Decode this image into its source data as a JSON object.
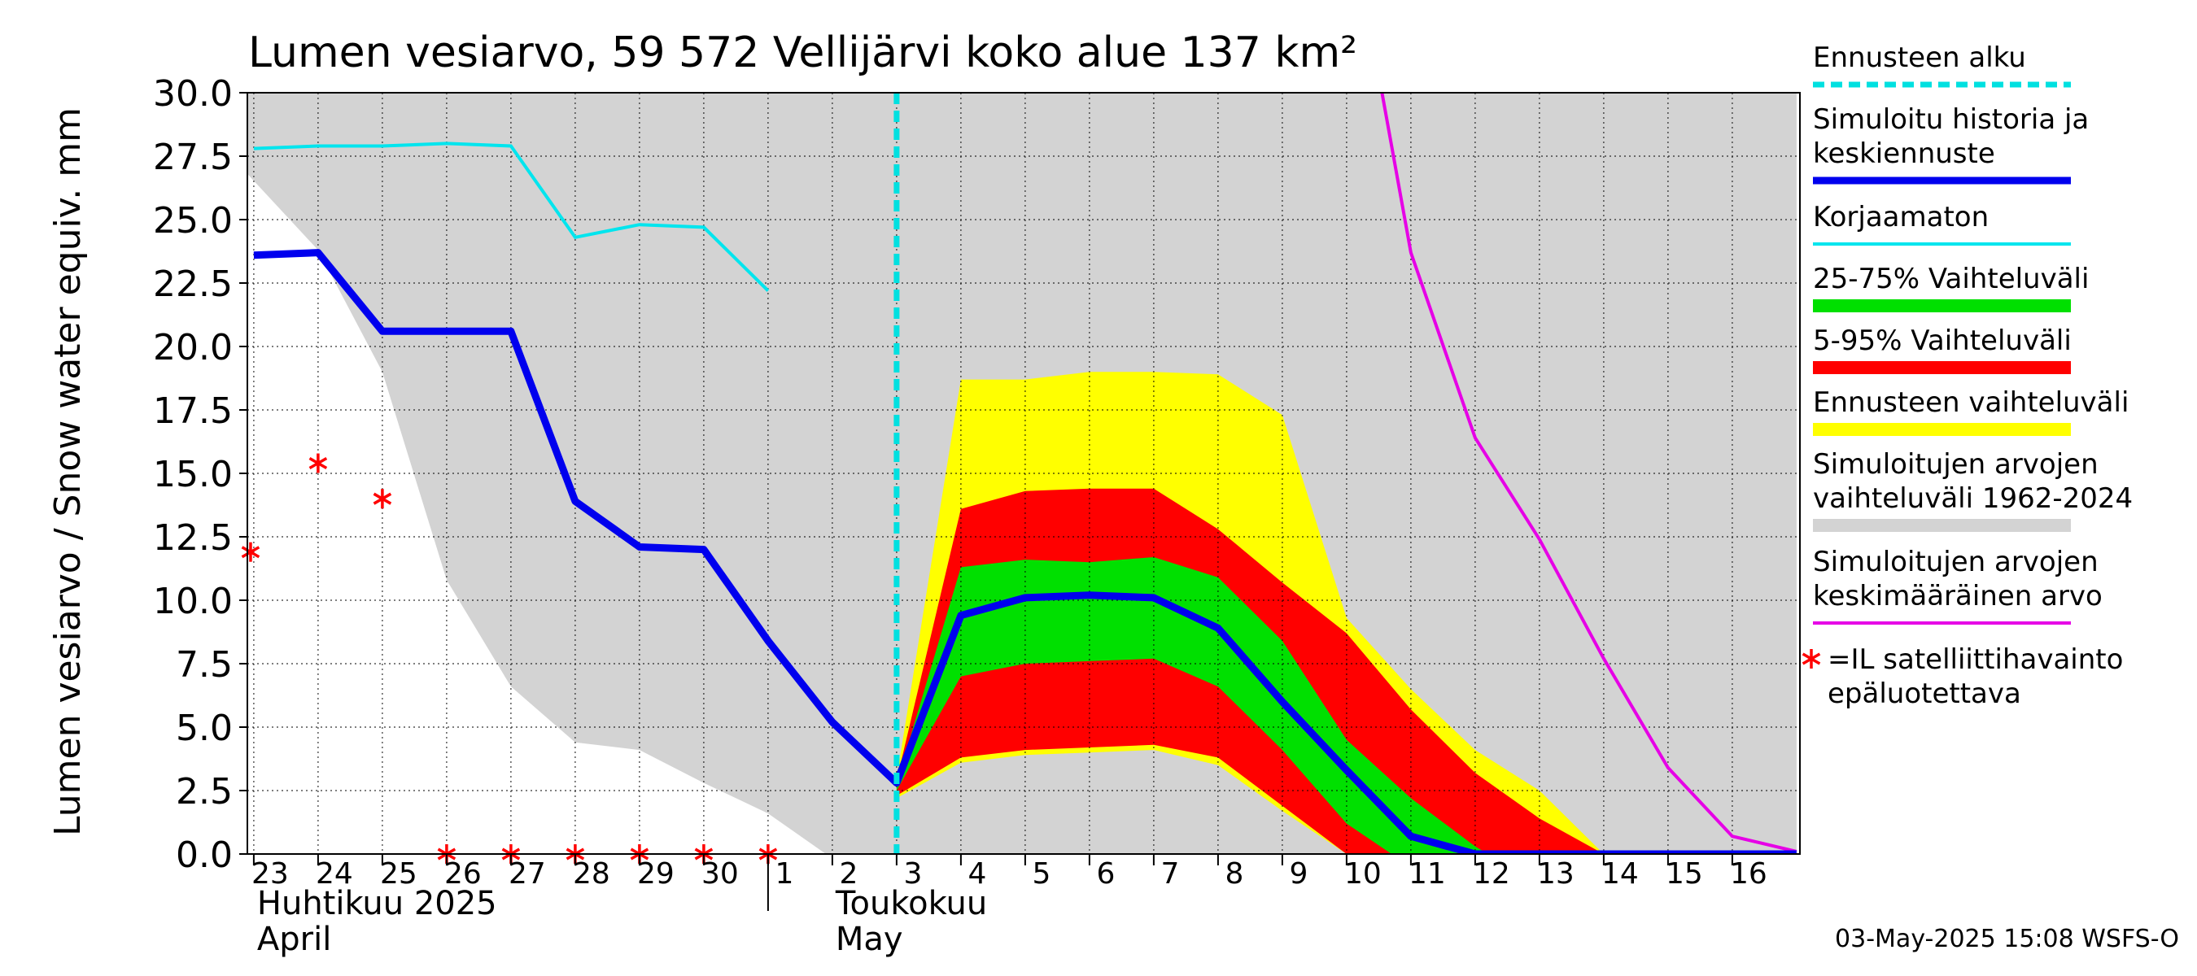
{
  "chart_data": {
    "type": "area",
    "title": "Lumen vesiarvo, 59 572 Vellijärvi koko alue 137 km²",
    "ylabel": "Lumen vesiarvo / Snow water equiv.    mm",
    "ylim": [
      0,
      30
    ],
    "yticks": [
      "0.0",
      "2.5",
      "5.0",
      "7.5",
      "10.0",
      "12.5",
      "15.0",
      "17.5",
      "20.0",
      "22.5",
      "25.0",
      "27.5",
      "30.0"
    ],
    "x_unit": "day",
    "xlim": [
      -0.1,
      24.0
    ],
    "day_labels": [
      {
        "x": 0,
        "label": "23"
      },
      {
        "x": 1,
        "label": "24"
      },
      {
        "x": 2,
        "label": "25"
      },
      {
        "x": 3,
        "label": "26"
      },
      {
        "x": 4,
        "label": "27"
      },
      {
        "x": 5,
        "label": "28"
      },
      {
        "x": 6,
        "label": "29"
      },
      {
        "x": 7,
        "label": "30"
      },
      {
        "x": 8,
        "label": "1"
      },
      {
        "x": 9,
        "label": "2"
      },
      {
        "x": 10,
        "label": "3"
      },
      {
        "x": 11,
        "label": "4"
      },
      {
        "x": 12,
        "label": "5"
      },
      {
        "x": 13,
        "label": "6"
      },
      {
        "x": 14,
        "label": "7"
      },
      {
        "x": 15,
        "label": "8"
      },
      {
        "x": 16,
        "label": "9"
      },
      {
        "x": 17,
        "label": "10"
      },
      {
        "x": 18,
        "label": "11"
      },
      {
        "x": 19,
        "label": "12"
      },
      {
        "x": 20,
        "label": "13"
      },
      {
        "x": 21,
        "label": "14"
      },
      {
        "x": 22,
        "label": "15"
      },
      {
        "x": 23,
        "label": "16"
      }
    ],
    "month_labels": [
      {
        "x": 0,
        "fi": "Huhtikuu  2025",
        "en": "April"
      },
      {
        "x": 9,
        "fi": "Toukokuu",
        "en": "May"
      }
    ],
    "month_boundary_x": 8,
    "forecast_start_x": 10,
    "colors": {
      "hist_range": "#d3d3d3",
      "forecast_range": "#ffff00",
      "p5_95": "#ff0000",
      "p25_75": "#00e000",
      "mean": "#0000ee",
      "uncorrected": "#00e5ee",
      "sim_mean": "#e600e6",
      "satellite": "#ff0000",
      "forecast_start": "#00e0e0",
      "grid": "#000000"
    },
    "series": [
      {
        "name": "Simuloitujen arvojen vaihteluväli 1962-2024",
        "role": "hist_range",
        "upper": [
          [
            -0.1,
            30
          ],
          [
            24,
            30
          ]
        ],
        "lower": [
          [
            -0.1,
            26.8
          ],
          [
            1,
            23.8
          ],
          [
            2,
            19
          ],
          [
            3,
            10.8
          ],
          [
            4,
            6.6
          ],
          [
            5,
            4.4
          ],
          [
            6,
            4.1
          ],
          [
            7,
            2.8
          ],
          [
            8,
            1.6
          ],
          [
            8.9,
            0
          ],
          [
            24,
            0
          ]
        ]
      },
      {
        "name": "Ennusteen vaihteluväli",
        "role": "forecast_range",
        "upper": [
          [
            10,
            3.0
          ],
          [
            11,
            18.7
          ],
          [
            12,
            18.7
          ],
          [
            13,
            19.0
          ],
          [
            14,
            19.0
          ],
          [
            15,
            18.9
          ],
          [
            16,
            17.3
          ],
          [
            17,
            9.3
          ],
          [
            18,
            6.5
          ],
          [
            19,
            4.1
          ],
          [
            20,
            2.5
          ],
          [
            21,
            0
          ]
        ],
        "lower": [
          [
            10,
            2.2
          ],
          [
            11,
            3.6
          ],
          [
            12,
            3.9
          ],
          [
            13,
            4.0
          ],
          [
            14,
            4.1
          ],
          [
            15,
            3.5
          ],
          [
            16,
            1.7
          ],
          [
            17,
            0
          ]
        ]
      },
      {
        "name": "5-95% Vaihteluväli",
        "role": "p5_95",
        "upper": [
          [
            10,
            2.9
          ],
          [
            11,
            13.6
          ],
          [
            12,
            14.3
          ],
          [
            13,
            14.4
          ],
          [
            14,
            14.4
          ],
          [
            15,
            12.8
          ],
          [
            16,
            10.7
          ],
          [
            17,
            8.7
          ],
          [
            18,
            5.7
          ],
          [
            19,
            3.2
          ],
          [
            20,
            1.4
          ],
          [
            21,
            0
          ]
        ],
        "lower": [
          [
            10,
            2.3
          ],
          [
            11,
            3.8
          ],
          [
            12,
            4.1
          ],
          [
            13,
            4.2
          ],
          [
            14,
            4.3
          ],
          [
            15,
            3.8
          ],
          [
            16,
            1.9
          ],
          [
            17,
            0
          ]
        ]
      },
      {
        "name": "25-75% Vaihteluväli",
        "role": "p25_75",
        "upper": [
          [
            10,
            2.8
          ],
          [
            11,
            11.3
          ],
          [
            12,
            11.6
          ],
          [
            13,
            11.5
          ],
          [
            14,
            11.7
          ],
          [
            15,
            10.9
          ],
          [
            16,
            8.4
          ],
          [
            17,
            4.5
          ],
          [
            18,
            2.2
          ],
          [
            19,
            0.3
          ],
          [
            19.2,
            0
          ]
        ],
        "lower": [
          [
            10,
            2.5
          ],
          [
            11,
            7.0
          ],
          [
            12,
            7.5
          ],
          [
            13,
            7.6
          ],
          [
            14,
            7.7
          ],
          [
            15,
            6.6
          ],
          [
            16,
            4.1
          ],
          [
            17,
            1.2
          ],
          [
            17.7,
            0
          ]
        ]
      },
      {
        "name": "Simuloitu historia ja keskiennuste",
        "role": "mean",
        "points": [
          [
            0,
            23.6
          ],
          [
            1,
            23.7
          ],
          [
            2,
            20.6
          ],
          [
            3,
            20.6
          ],
          [
            4,
            20.6
          ],
          [
            5,
            13.9
          ],
          [
            6,
            12.1
          ],
          [
            7,
            12.0
          ],
          [
            8,
            8.4
          ],
          [
            9,
            5.2
          ],
          [
            10,
            2.8
          ],
          [
            11,
            9.4
          ],
          [
            12,
            10.1
          ],
          [
            13,
            10.2
          ],
          [
            14,
            10.1
          ],
          [
            15,
            8.9
          ],
          [
            16,
            6.0
          ],
          [
            17,
            3.3
          ],
          [
            18,
            0.7
          ],
          [
            19,
            0
          ],
          [
            24,
            0
          ]
        ]
      },
      {
        "name": "Korjaamaton",
        "role": "uncorrected",
        "points": [
          [
            0,
            27.8
          ],
          [
            1,
            27.9
          ],
          [
            2,
            27.9
          ],
          [
            3,
            28.0
          ],
          [
            4,
            27.9
          ],
          [
            5,
            24.3
          ],
          [
            6,
            24.8
          ],
          [
            7,
            24.7
          ],
          [
            8,
            22.2
          ]
        ]
      },
      {
        "name": "Simuloitujen arvojen keskimääräinen arvo",
        "role": "sim_mean",
        "points": [
          [
            17.55,
            30
          ],
          [
            18,
            23.7
          ],
          [
            19,
            16.4
          ],
          [
            20,
            12.4
          ],
          [
            21,
            7.7
          ],
          [
            22,
            3.4
          ],
          [
            23,
            0.7
          ],
          [
            24,
            0.1
          ]
        ]
      },
      {
        "name": "=IL satelliittihavainto epäluotettava",
        "role": "satellite",
        "marker": "asterisk",
        "points": [
          [
            -0.05,
            11.9
          ],
          [
            1,
            15.4
          ],
          [
            2,
            14.0
          ],
          [
            3,
            0
          ],
          [
            4,
            0
          ],
          [
            5,
            0
          ],
          [
            6,
            0
          ],
          [
            7,
            0
          ],
          [
            8,
            0
          ]
        ]
      }
    ],
    "legend": {
      "placement": "right",
      "items": [
        {
          "lines": [
            "Ennusteen alku"
          ],
          "role": "forecast_start",
          "style": "dashed"
        },
        {
          "lines": [
            "Simuloitu historia ja",
            "keskiennuste"
          ],
          "role": "mean",
          "style": "thick"
        },
        {
          "lines": [
            "Korjaamaton"
          ],
          "role": "uncorrected",
          "style": "line"
        },
        {
          "lines": [
            "25-75% Vaihteluväli"
          ],
          "role": "p25_75",
          "style": "band"
        },
        {
          "lines": [
            "5-95% Vaihteluväli"
          ],
          "role": "p5_95",
          "style": "band"
        },
        {
          "lines": [
            "Ennusteen vaihteluväli"
          ],
          "role": "forecast_range",
          "style": "band"
        },
        {
          "lines": [
            "Simuloitujen arvojen",
            "vaihteluväli 1962-2024"
          ],
          "role": "hist_range",
          "style": "band"
        },
        {
          "lines": [
            "Simuloitujen arvojen",
            "keskimääräinen arvo"
          ],
          "role": "sim_mean",
          "style": "line"
        },
        {
          "lines": [
            "=IL satelliittihavainto",
            "epäluotettava"
          ],
          "role": "satellite",
          "style": "asterisk"
        }
      ]
    },
    "grid": true
  },
  "footer": "03-May-2025 15:08 WSFS-O"
}
